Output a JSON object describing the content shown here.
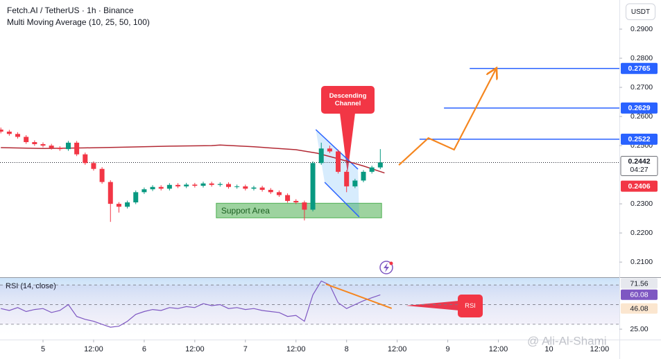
{
  "chart_data": {
    "type": "candlestick",
    "title": "Fetch.AI / TetherUS · 1h · Binance",
    "indicator": "Multi Moving Average (10, 25, 50, 100)",
    "currency": "USDT",
    "watermark": "@ Ali-Al-Shami",
    "up_color": "#089981",
    "down_color": "#f23645",
    "x": [
      -10,
      -8,
      -6,
      -4,
      -2,
      0,
      2,
      4,
      6,
      8,
      10,
      12,
      14,
      16,
      18,
      20,
      22,
      24,
      26,
      28,
      30,
      32,
      34,
      36,
      38,
      40,
      42,
      44,
      46,
      48,
      50,
      52,
      54,
      56,
      58,
      60,
      62,
      64,
      66,
      68,
      70,
      72,
      74,
      76,
      78,
      80
    ],
    "open": [
      0.2555,
      0.2548,
      0.254,
      0.253,
      0.2512,
      0.2505,
      0.25,
      0.2492,
      0.2488,
      0.251,
      0.247,
      0.244,
      0.242,
      0.2375,
      0.23,
      0.229,
      0.2305,
      0.234,
      0.235,
      0.2358,
      0.2352,
      0.2365,
      0.236,
      0.2366,
      0.2362,
      0.237,
      0.2365,
      0.2368,
      0.2358,
      0.236,
      0.2352,
      0.2356,
      0.2348,
      0.234,
      0.233,
      0.231,
      0.2305,
      0.228,
      0.244,
      0.249,
      0.248,
      0.241,
      0.236,
      0.238,
      0.241,
      0.2425
    ],
    "high": [
      0.2562,
      0.2554,
      0.2546,
      0.2536,
      0.2518,
      0.2511,
      0.2506,
      0.2498,
      0.2516,
      0.2516,
      0.2476,
      0.2446,
      0.2426,
      0.2381,
      0.2306,
      0.2311,
      0.2346,
      0.2356,
      0.2364,
      0.2364,
      0.2371,
      0.2371,
      0.2372,
      0.2372,
      0.2376,
      0.2376,
      0.2374,
      0.2374,
      0.2366,
      0.2366,
      0.2362,
      0.2362,
      0.2354,
      0.2346,
      0.2336,
      0.2316,
      0.2311,
      0.2446,
      0.251,
      0.25,
      0.2486,
      0.2416,
      0.2386,
      0.2416,
      0.2431,
      0.2488
    ],
    "low": [
      0.2542,
      0.2534,
      0.2524,
      0.2506,
      0.2499,
      0.2494,
      0.2486,
      0.2482,
      0.2482,
      0.2464,
      0.2434,
      0.2414,
      0.2369,
      0.2238,
      0.227,
      0.2284,
      0.2299,
      0.2334,
      0.2344,
      0.2346,
      0.2346,
      0.2354,
      0.2354,
      0.2356,
      0.2356,
      0.2359,
      0.2359,
      0.2352,
      0.2352,
      0.2346,
      0.2346,
      0.2342,
      0.2334,
      0.2324,
      0.2304,
      0.2299,
      0.2243,
      0.2274,
      0.2434,
      0.2474,
      0.2404,
      0.234,
      0.2354,
      0.2374,
      0.2404,
      0.2419
    ],
    "close": [
      0.2548,
      0.254,
      0.253,
      0.2512,
      0.2505,
      0.25,
      0.2492,
      0.2488,
      0.251,
      0.247,
      0.244,
      0.242,
      0.2375,
      0.23,
      0.229,
      0.2305,
      0.234,
      0.235,
      0.2358,
      0.2352,
      0.2365,
      0.236,
      0.2366,
      0.2362,
      0.237,
      0.2365,
      0.2368,
      0.2358,
      0.236,
      0.2352,
      0.2356,
      0.2348,
      0.234,
      0.233,
      0.231,
      0.2305,
      0.228,
      0.244,
      0.249,
      0.248,
      0.241,
      0.236,
      0.238,
      0.241,
      0.2425,
      0.2442
    ],
    "moving_average": {
      "color": "#b22833",
      "x": [
        -10,
        0,
        10,
        20,
        30,
        40,
        42,
        50,
        60,
        65,
        70,
        76,
        81
      ],
      "values": [
        0.2493,
        0.249,
        0.2492,
        0.2495,
        0.2498,
        0.25,
        0.2502,
        0.2496,
        0.2486,
        0.2474,
        0.2455,
        0.243,
        0.2406
      ]
    },
    "xlim": [
      -10.2,
      136.7
    ],
    "xticks": [
      {
        "value": 0,
        "label": "5"
      },
      {
        "value": 12,
        "label": "12:00"
      },
      {
        "value": 24,
        "label": "6"
      },
      {
        "value": 36,
        "label": "12:00"
      },
      {
        "value": 48,
        "label": "7"
      },
      {
        "value": 60,
        "label": "12:00"
      },
      {
        "value": 72,
        "label": "8"
      },
      {
        "value": 84,
        "label": "12:00"
      },
      {
        "value": 96,
        "label": "9"
      },
      {
        "value": 108,
        "label": "12:00"
      },
      {
        "value": 120,
        "label": "10"
      },
      {
        "value": 132,
        "label": "12:00"
      }
    ],
    "ylim": [
      0.2048,
      0.3
    ],
    "yticks": [
      {
        "value": 0.29,
        "label": "0.2900"
      },
      {
        "value": 0.28,
        "label": "0.2800"
      },
      {
        "value": 0.27,
        "label": "0.2700"
      },
      {
        "value": 0.26,
        "label": "0.2600"
      },
      {
        "value": 0.25,
        "label": "0.2500"
      },
      {
        "value": 0.23,
        "label": "0.2300"
      },
      {
        "value": 0.22,
        "label": "0.2200"
      },
      {
        "value": 0.21,
        "label": "0.2100"
      }
    ],
    "last_price": 0.2442,
    "countdown": "04:27",
    "ma_price": 0.2406,
    "level_color": "#2962ff",
    "levels": [
      {
        "value": 0.2522,
        "start": 89.3
      },
      {
        "value": 0.2629,
        "start": 95.1
      },
      {
        "value": 0.2765,
        "start": 101.2
      }
    ],
    "projection": {
      "color": "#f5861f",
      "x": [
        84.4,
        91.4,
        97.5,
        107.4
      ],
      "values": [
        0.2433,
        0.2526,
        0.2486,
        0.2762
      ]
    },
    "channel": {
      "label": "Descending Channel",
      "upper": {
        "x": [
          64.7,
          74.7
        ],
        "values": [
          0.2555,
          0.2419
        ]
      },
      "lower": {
        "x": [
          66.8,
          75.0
        ],
        "values": [
          0.2374,
          0.2255
        ]
      }
    },
    "support_area": {
      "label": "Support Area",
      "x": [
        41.1,
        80.3
      ],
      "y": [
        0.2252,
        0.2302
      ]
    },
    "rsi": {
      "title": "RSI (14, close)",
      "label": "RSI",
      "color": "#7e57c2",
      "values": [
        46,
        44,
        47,
        43,
        45,
        46,
        42,
        44,
        50,
        38,
        35,
        33,
        30,
        27,
        28,
        33,
        40,
        43,
        45,
        44,
        47,
        46,
        48,
        47,
        51,
        49,
        50,
        46,
        47,
        45,
        46,
        44,
        43,
        42,
        38,
        39,
        33,
        60,
        74,
        70,
        52,
        46,
        50,
        54,
        57,
        60
      ],
      "ylim": [
        14.4,
        77.9
      ],
      "yticks": [
        {
          "value": 25,
          "label": "25.00"
        }
      ],
      "bands": [
        70,
        50,
        30
      ],
      "badges": [
        {
          "value": 71.56,
          "color": "#e6e8ee"
        },
        {
          "value": 60.08,
          "color": "#7e57c2"
        },
        {
          "value": 46.08,
          "color": "#fbe6cf"
        }
      ],
      "divergence": {
        "color": "#f5861f",
        "x": [
          67.1,
          82.7
        ],
        "values": [
          70.9,
          46.2
        ]
      }
    }
  }
}
